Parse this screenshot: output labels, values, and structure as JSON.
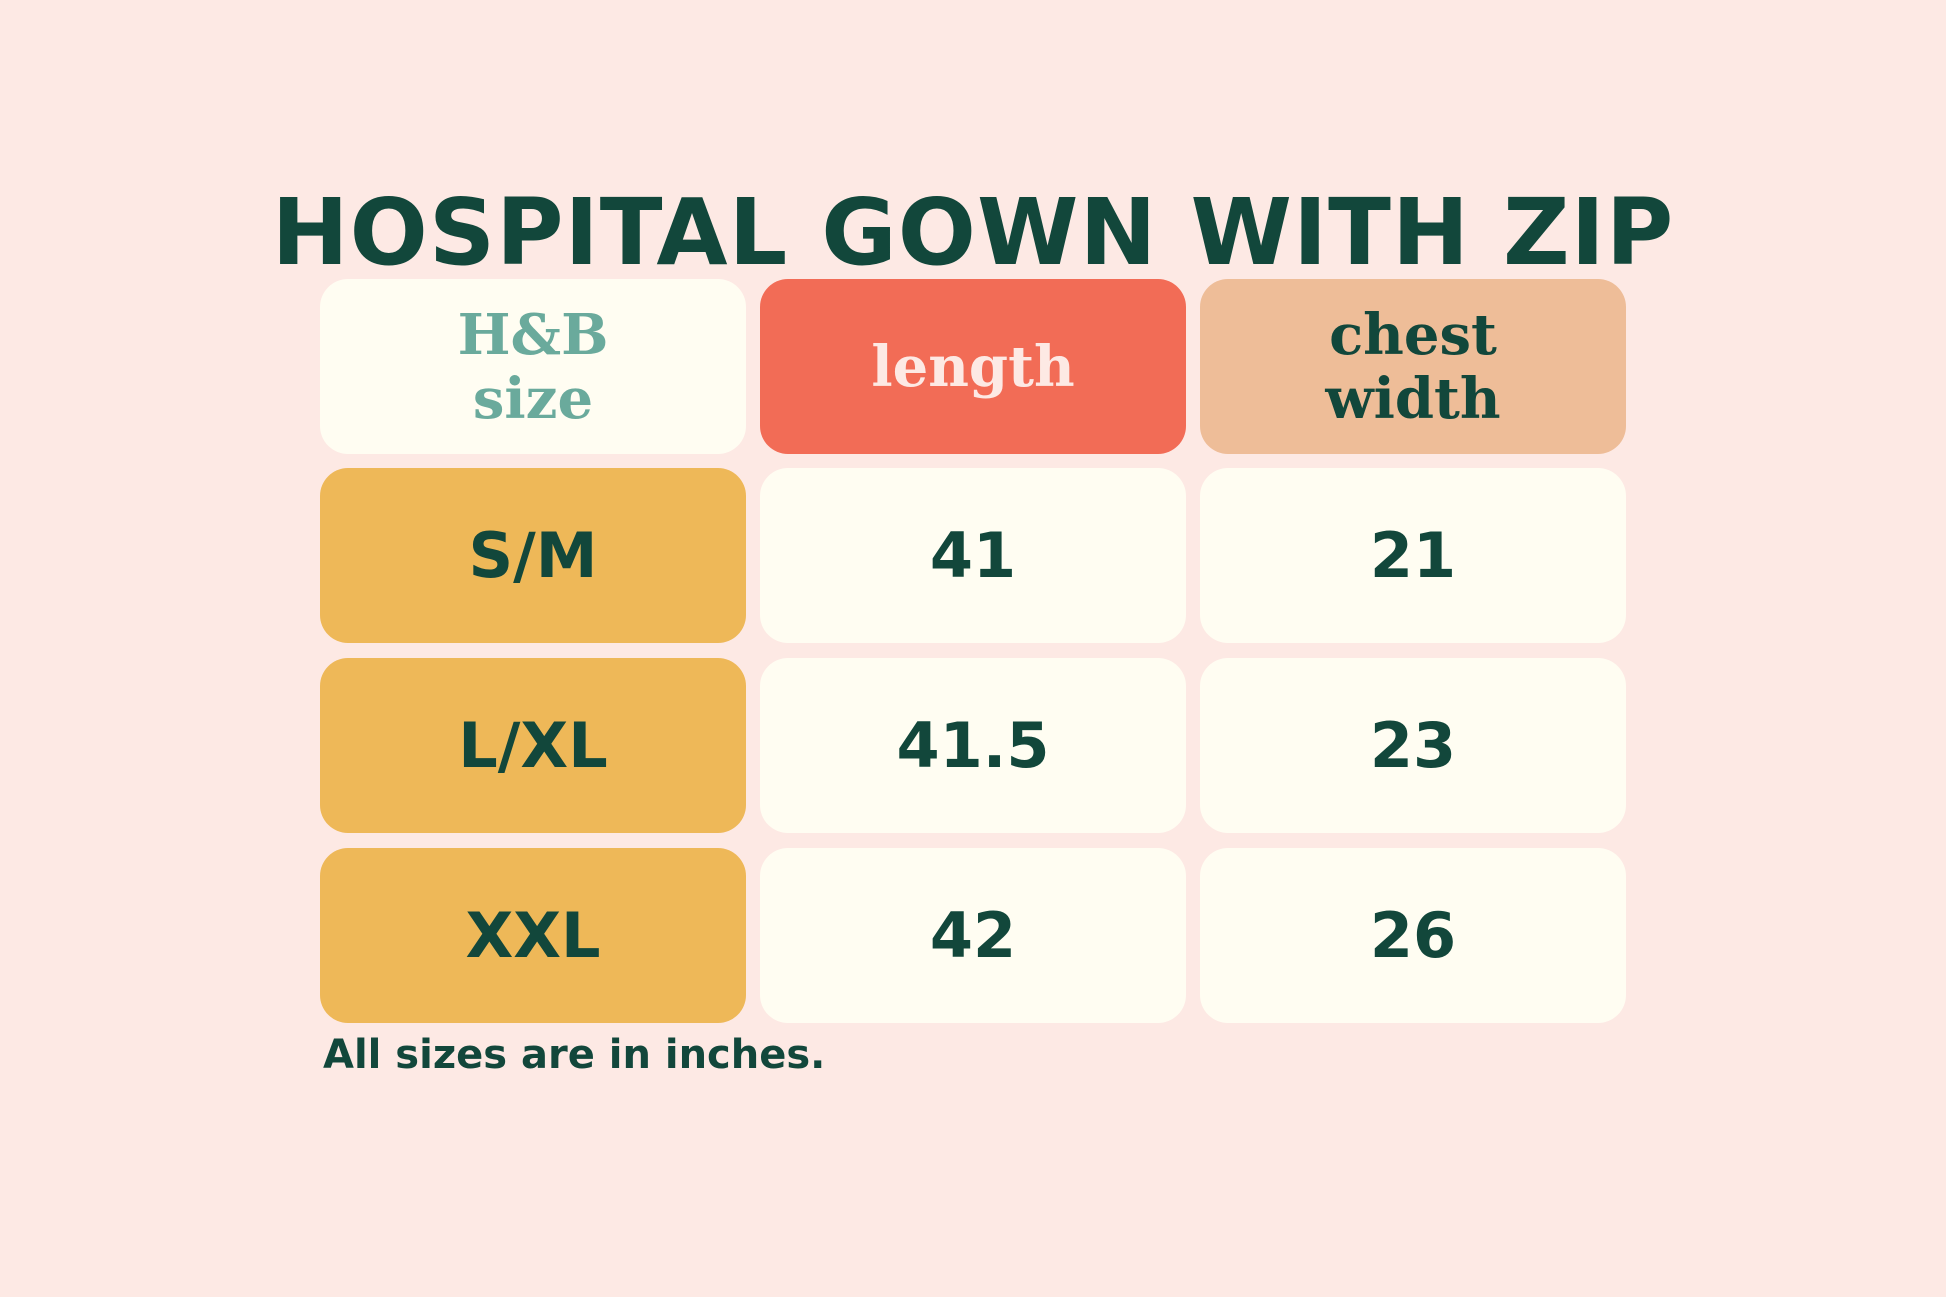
{
  "title": "HOSPITAL GOWN WITH ZIP",
  "headers": {
    "size_line1": "H&B",
    "size_line2": "size",
    "length": "length",
    "chest_line1": "chest",
    "chest_line2": "width"
  },
  "rows": [
    {
      "size": "S/M",
      "length": "41",
      "chest_width": "21"
    },
    {
      "size": "L/XL",
      "length": "41.5",
      "chest_width": "23"
    },
    {
      "size": "XXL",
      "length": "42",
      "chest_width": "26"
    }
  ],
  "note": "All sizes are in inches.",
  "colors": {
    "background": "#fde9e4",
    "text_dark_green": "#12473b",
    "size_header_text": "#6aaa9c",
    "length_header_bg": "#f26c56",
    "chest_header_bg": "#eebd98",
    "size_label_bg": "#eeb858",
    "value_cell_bg": "#fffdf2"
  }
}
